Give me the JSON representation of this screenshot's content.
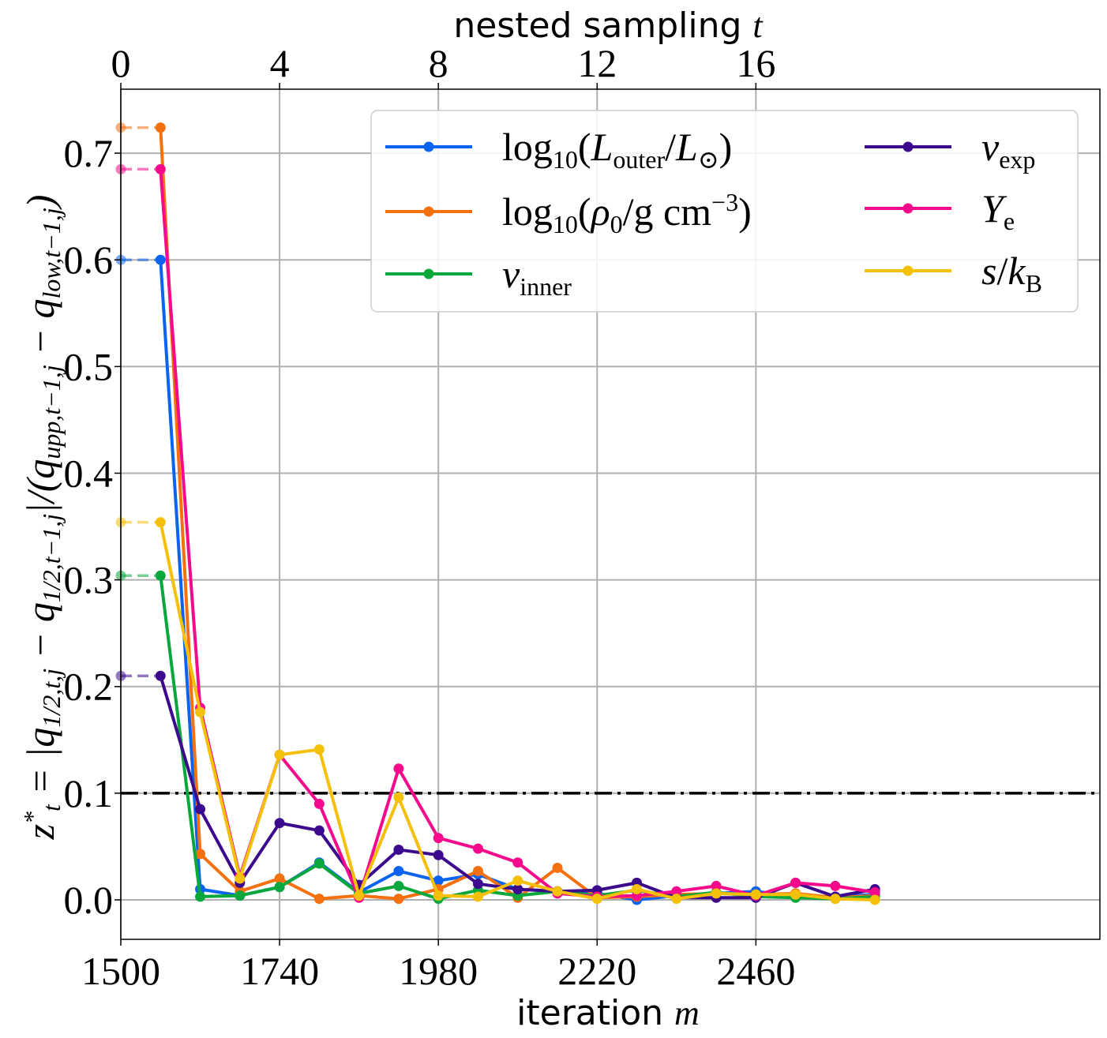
{
  "chart_data": {
    "type": "line",
    "xlabel": "iteration m",
    "xlabel_text": "iteration",
    "xlabel_var": "m",
    "x2label": "nested sampling t",
    "x2label_text": "nested sampling",
    "x2label_var": "t",
    "ylabel": "z*_t = |q_{1/2,t,j} − q_{1/2,t−1,j}| / (q_{upp,t−1,j} − q_{low,t−1,j})",
    "xlim": [
      1500,
      2980
    ],
    "ylim": [
      -0.037,
      0.76
    ],
    "xticks": [
      1500,
      1740,
      1980,
      2220,
      2460
    ],
    "xticklabels": [
      "1500",
      "1740",
      "1980",
      "2220",
      "2460"
    ],
    "x2ticks": [
      0,
      4,
      8,
      12,
      16
    ],
    "x2ticklabels": [
      "0",
      "4",
      "8",
      "12",
      "16"
    ],
    "x2_per_x1": 60,
    "yticks": [
      0.0,
      0.1,
      0.2,
      0.3,
      0.4,
      0.5,
      0.6,
      0.7
    ],
    "yticklabels": [
      "0.0",
      "0.1",
      "0.2",
      "0.3",
      "0.4",
      "0.5",
      "0.6",
      "0.7"
    ],
    "grid": true,
    "threshold": {
      "value": 0.1,
      "style": "dash-dot",
      "color": "#000000"
    },
    "legend_position": "top-right",
    "x": [
      1560,
      1620,
      1680,
      1740,
      1800,
      1860,
      1920,
      1980,
      2040,
      2100,
      2160,
      2220,
      2280,
      2340,
      2400,
      2460,
      2520,
      2580,
      2640
    ],
    "series": [
      {
        "name": "log10(L_outer/L_sun)",
        "label_main": "log",
        "label_sub": "10",
        "label_rest": "(L",
        "label_sub2": "outer",
        "label_tail": "/L",
        "label_sub3": "⊙",
        "label_end": ")",
        "color": "#0a64f0",
        "initial": 0.6,
        "values": [
          0.6,
          0.01,
          0.004,
          0.012,
          0.035,
          0.007,
          0.027,
          0.018,
          0.024,
          0.01,
          0.008,
          0.006,
          0.0,
          0.004,
          0.006,
          0.008,
          0.003,
          0.003,
          0.005
        ]
      },
      {
        "name": "log10(rho_0/g cm^-3)",
        "color": "#f5700f",
        "initial": 0.724,
        "values": [
          0.724,
          0.043,
          0.008,
          0.02,
          0.001,
          0.004,
          0.001,
          0.01,
          0.027,
          0.002,
          0.03,
          0.002,
          0.003,
          0.005,
          0.006,
          0.005,
          0.006,
          0.002,
          0.004
        ]
      },
      {
        "name": "v_inner",
        "color": "#0aa83c",
        "initial": 0.304,
        "values": [
          0.304,
          0.003,
          0.004,
          0.012,
          0.034,
          0.006,
          0.013,
          0.001,
          0.009,
          0.004,
          0.008,
          0.004,
          0.009,
          0.003,
          0.007,
          0.003,
          0.002,
          0.001,
          0.003
        ]
      },
      {
        "name": "v_exp",
        "color": "#3c0a8c",
        "initial": 0.21,
        "values": [
          0.21,
          0.085,
          0.016,
          0.072,
          0.065,
          0.014,
          0.047,
          0.042,
          0.015,
          0.01,
          0.008,
          0.009,
          0.016,
          0.002,
          0.002,
          0.002,
          0.016,
          0.003,
          0.01
        ]
      },
      {
        "name": "Y_e",
        "color": "#f50a8c",
        "initial": 0.685,
        "values": [
          0.685,
          0.18,
          0.022,
          0.136,
          0.09,
          0.002,
          0.123,
          0.058,
          0.048,
          0.035,
          0.006,
          0.003,
          0.004,
          0.008,
          0.013,
          0.004,
          0.016,
          0.013,
          0.007
        ]
      },
      {
        "name": "s/k_B",
        "color": "#f5c00a",
        "initial": 0.354,
        "values": [
          0.354,
          0.176,
          0.02,
          0.136,
          0.141,
          0.004,
          0.096,
          0.004,
          0.003,
          0.018,
          0.008,
          0.001,
          0.01,
          0.001,
          0.006,
          0.005,
          0.005,
          0.001,
          0.0
        ]
      }
    ]
  }
}
